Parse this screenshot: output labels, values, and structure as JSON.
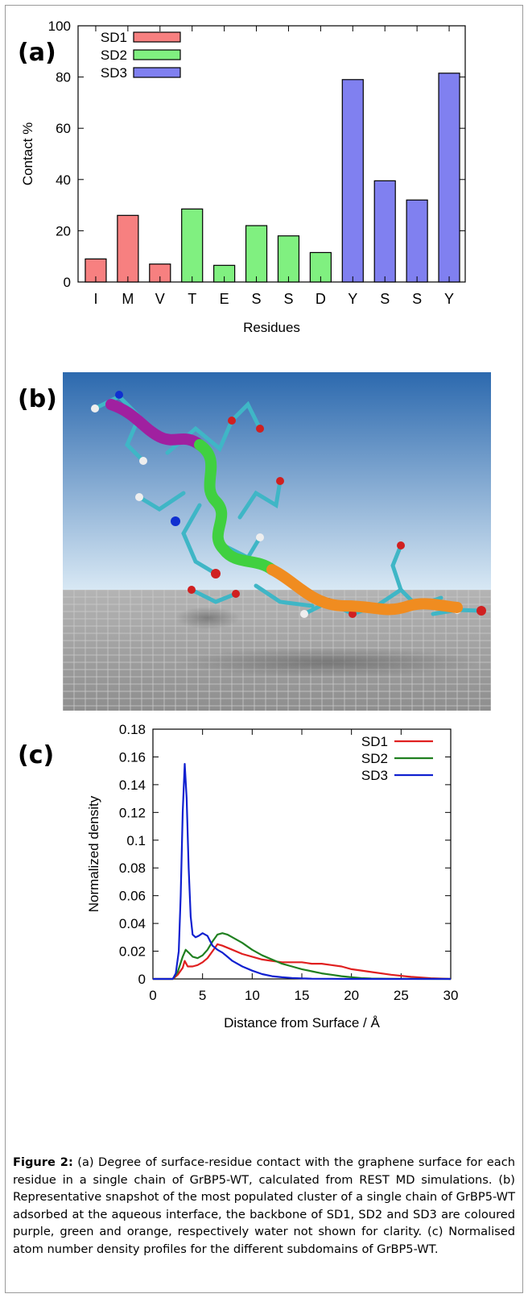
{
  "figure": {
    "caption_label": "Figure 2:",
    "caption_text": " (a) Degree of surface-residue contact with the graphene surface for each residue in a single chain of GrBP5-WT, calculated from REST MD simulations. (b) Representative snapshot of the most populated cluster of a single chain of GrBP5-WT adsorbed at the aqueous interface, the backbone of SD1, SD2 and SD3 are coloured purple, green and orange, respectively water not shown for clarity. (c) Normalised atom number density profiles for the different subdomains of GrBP5-WT."
  },
  "panels": {
    "a_label": "(a)",
    "b_label": "(b)",
    "c_label": "(c)"
  },
  "colors": {
    "sd1_bar": "#f78080",
    "sd2_bar": "#80f080",
    "sd3_bar": "#8080f0",
    "sd1_line": "#e02020",
    "sd2_line": "#208020",
    "sd3_line": "#1020d0",
    "sky_top": "#2f6db0",
    "sky_bottom": "#d6e6f3",
    "floor": "#a9a9a9",
    "backbone_sd1": "#a020a0",
    "backbone_sd2": "#40d040",
    "backbone_sd3": "#f08c20"
  },
  "chart_data": [
    {
      "type": "bar",
      "xlabel": "Residues",
      "ylabel": "Contact %",
      "ylim": [
        0,
        100
      ],
      "yticks": [
        0,
        20,
        40,
        60,
        80,
        100
      ],
      "categories": [
        "I",
        "M",
        "V",
        "T",
        "E",
        "S",
        "S",
        "D",
        "Y",
        "S",
        "S",
        "Y"
      ],
      "values": [
        9,
        26,
        7,
        28.5,
        6.5,
        22,
        18,
        11.5,
        79,
        39.5,
        32,
        81.5
      ],
      "groups": [
        "SD1",
        "SD1",
        "SD1",
        "SD2",
        "SD2",
        "SD2",
        "SD2",
        "SD2",
        "SD3",
        "SD3",
        "SD3",
        "SD3"
      ],
      "legend": [
        "SD1",
        "SD2",
        "SD3"
      ],
      "legend_position": "top-left"
    },
    {
      "type": "line",
      "xlabel": "Distance from Surface / Å",
      "ylabel": "Normalized density",
      "xlim": [
        0,
        30
      ],
      "ylim": [
        0,
        0.18
      ],
      "xticks": [
        0,
        5,
        10,
        15,
        20,
        25,
        30
      ],
      "yticks": [
        "0",
        "0.02",
        "0.04",
        "0.06",
        "0.08",
        "0.1",
        "0.12",
        "0.14",
        "0.16",
        "0.18"
      ],
      "legend_position": "top-right",
      "series": [
        {
          "name": "SD1",
          "x": [
            0,
            2.0,
            2.5,
            3.0,
            3.2,
            3.5,
            4.0,
            4.5,
            5.0,
            5.5,
            6.0,
            6.5,
            7.0,
            8.0,
            9.0,
            10.0,
            11.0,
            12.0,
            13.0,
            14.0,
            15.0,
            16.0,
            17.0,
            18.0,
            19.0,
            20.0,
            22.0,
            24.0,
            26.0,
            28.0,
            30.0
          ],
          "y": [
            0,
            0,
            0.003,
            0.008,
            0.013,
            0.009,
            0.009,
            0.01,
            0.012,
            0.015,
            0.02,
            0.025,
            0.024,
            0.021,
            0.018,
            0.016,
            0.014,
            0.013,
            0.012,
            0.012,
            0.012,
            0.011,
            0.011,
            0.01,
            0.009,
            0.007,
            0.005,
            0.003,
            0.0015,
            0.0005,
            0
          ]
        },
        {
          "name": "SD2",
          "x": [
            0,
            2.0,
            2.5,
            3.0,
            3.3,
            3.6,
            4.0,
            4.5,
            5.0,
            5.5,
            6.0,
            6.5,
            7.0,
            7.5,
            8.0,
            9.0,
            10.0,
            11.0,
            12.0,
            13.0,
            14.0,
            15.0,
            16.0,
            17.0,
            18.0,
            19.0,
            20.0,
            21.0,
            22.0,
            24.0,
            30.0
          ],
          "y": [
            0,
            0,
            0.005,
            0.016,
            0.021,
            0.019,
            0.016,
            0.015,
            0.017,
            0.021,
            0.027,
            0.032,
            0.033,
            0.032,
            0.03,
            0.026,
            0.021,
            0.017,
            0.014,
            0.011,
            0.009,
            0.007,
            0.0055,
            0.004,
            0.003,
            0.002,
            0.0012,
            0.0006,
            0.0003,
            0.0001,
            0
          ]
        },
        {
          "name": "SD3",
          "x": [
            0,
            2.0,
            2.3,
            2.6,
            2.8,
            3.0,
            3.2,
            3.4,
            3.6,
            3.8,
            4.0,
            4.3,
            4.6,
            5.0,
            5.5,
            6.0,
            6.5,
            7.0,
            7.5,
            8.0,
            9.0,
            10.0,
            11.0,
            12.0,
            13.0,
            14.0,
            15.0,
            16.0,
            18.0,
            20.0,
            30.0
          ],
          "y": [
            0,
            0,
            0.004,
            0.02,
            0.06,
            0.12,
            0.155,
            0.13,
            0.08,
            0.045,
            0.032,
            0.03,
            0.031,
            0.033,
            0.031,
            0.024,
            0.021,
            0.019,
            0.016,
            0.013,
            0.009,
            0.006,
            0.0035,
            0.002,
            0.0012,
            0.0007,
            0.0004,
            0.0002,
            0.0001,
            0,
            0
          ]
        }
      ]
    }
  ]
}
